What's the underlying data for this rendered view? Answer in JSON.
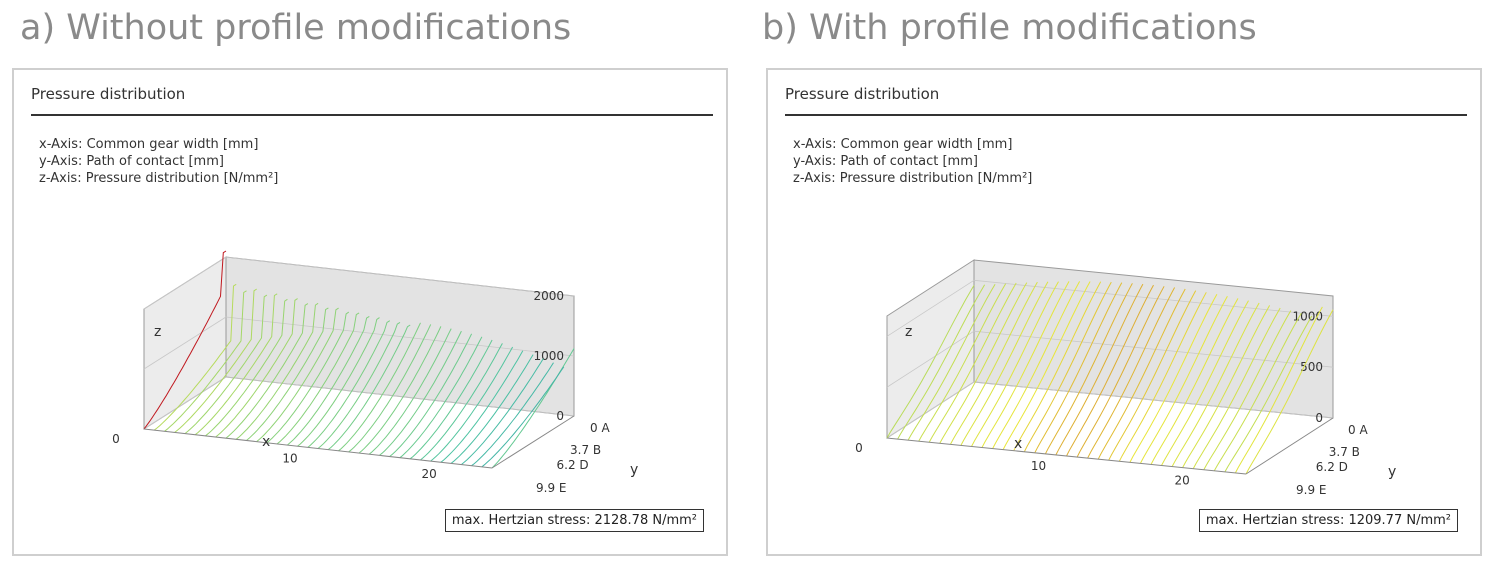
{
  "headings": {
    "a": "a) Without profile modifications",
    "b": "b) With profile modifications"
  },
  "panel_title": "Pressure distribution",
  "axis_info": {
    "x": "x-Axis: Common gear width [mm]",
    "y": "y-Axis: Path of contact [mm]",
    "z": "z-Axis: Pressure distribution [N/mm²]"
  },
  "colors": {
    "low": "#1f78b4",
    "mid": "#4dc4a3",
    "high": "#e9e63a",
    "peak": "#c0181e"
  },
  "chart_data": [
    {
      "type": "surface-3d-wireframe",
      "title": "Pressure distribution",
      "xlabel": "x",
      "ylabel": "y",
      "zlabel": "z",
      "x_ticks": [
        "0",
        "10",
        "20"
      ],
      "y_ticks": [
        "0 A",
        "3.7 B",
        "6.2 D",
        "9.9 E"
      ],
      "z_ticks": [
        "0",
        "1000",
        "2000"
      ],
      "zlim": [
        0,
        2000
      ],
      "annotation": "max. Hertzian stress: 2128.78 N/mm²",
      "max_stress": 2128.78,
      "profile_modification": false
    },
    {
      "type": "surface-3d-wireframe",
      "title": "Pressure distribution",
      "xlabel": "x",
      "ylabel": "y",
      "zlabel": "z",
      "x_ticks": [
        "0",
        "10",
        "20"
      ],
      "y_ticks": [
        "0 A",
        "3.7 B",
        "6.2 D",
        "9.9 E"
      ],
      "z_ticks": [
        "0",
        "500",
        "1000"
      ],
      "zlim": [
        0,
        1200
      ],
      "annotation": "max. Hertzian stress: 1209.77 N/mm²",
      "max_stress": 1209.77,
      "profile_modification": true
    }
  ]
}
